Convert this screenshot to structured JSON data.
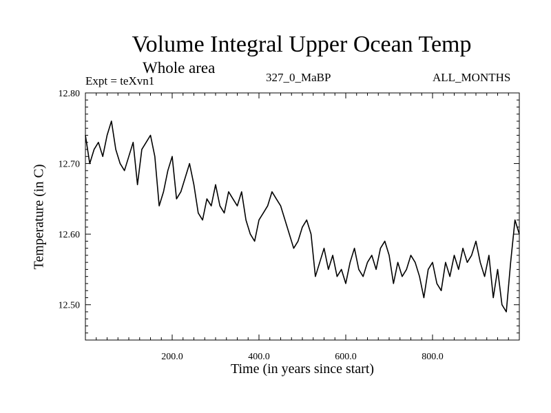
{
  "chart_data": {
    "type": "line",
    "title": "Volume Integral Upper Ocean Temp",
    "subtitle": "Whole area",
    "expt_label": "Expt = teXvn1",
    "run_label": "327_0_MaBP",
    "months_label": "ALL_MONTHS",
    "xlabel": "Time (in years since start)",
    "ylabel": "Temperature (in C)",
    "xlim": [
      0,
      1000
    ],
    "ylim": [
      12.45,
      12.8
    ],
    "xticks": [
      200,
      400,
      600,
      800
    ],
    "xtick_labels": [
      "200.0",
      "400.0",
      "600.0",
      "800.0"
    ],
    "yticks": [
      12.5,
      12.6,
      12.7,
      12.8
    ],
    "ytick_labels": [
      "12.50",
      "12.60",
      "12.70",
      "12.80"
    ],
    "grid": false,
    "series": [
      {
        "name": "Temperature",
        "x": [
          0,
          10,
          20,
          30,
          40,
          50,
          60,
          70,
          80,
          90,
          100,
          110,
          120,
          130,
          140,
          150,
          160,
          170,
          180,
          190,
          200,
          210,
          220,
          230,
          240,
          250,
          260,
          270,
          280,
          290,
          300,
          310,
          320,
          330,
          340,
          350,
          360,
          370,
          380,
          390,
          400,
          410,
          420,
          430,
          440,
          450,
          460,
          470,
          480,
          490,
          500,
          510,
          520,
          530,
          540,
          550,
          560,
          570,
          580,
          590,
          600,
          610,
          620,
          630,
          640,
          650,
          660,
          670,
          680,
          690,
          700,
          710,
          720,
          730,
          740,
          750,
          760,
          770,
          780,
          790,
          800,
          810,
          820,
          830,
          840,
          850,
          860,
          870,
          880,
          890,
          900,
          910,
          920,
          930,
          940,
          950,
          960,
          970,
          980,
          990,
          1000
        ],
        "values": [
          12.74,
          12.7,
          12.72,
          12.73,
          12.71,
          12.74,
          12.76,
          12.72,
          12.7,
          12.69,
          12.71,
          12.73,
          12.67,
          12.72,
          12.73,
          12.74,
          12.71,
          12.64,
          12.66,
          12.69,
          12.71,
          12.65,
          12.66,
          12.68,
          12.7,
          12.67,
          12.63,
          12.62,
          12.65,
          12.64,
          12.67,
          12.64,
          12.63,
          12.66,
          12.65,
          12.64,
          12.66,
          12.62,
          12.6,
          12.59,
          12.62,
          12.63,
          12.64,
          12.66,
          12.65,
          12.64,
          12.62,
          12.6,
          12.58,
          12.59,
          12.61,
          12.62,
          12.6,
          12.54,
          12.56,
          12.58,
          12.55,
          12.57,
          12.54,
          12.55,
          12.53,
          12.56,
          12.58,
          12.55,
          12.54,
          12.56,
          12.57,
          12.55,
          12.58,
          12.59,
          12.57,
          12.53,
          12.56,
          12.54,
          12.55,
          12.57,
          12.56,
          12.54,
          12.51,
          12.55,
          12.56,
          12.53,
          12.52,
          12.56,
          12.54,
          12.57,
          12.55,
          12.58,
          12.56,
          12.57,
          12.59,
          12.56,
          12.54,
          12.57,
          12.51,
          12.55,
          12.5,
          12.49,
          12.56,
          12.62,
          12.6
        ]
      }
    ]
  }
}
